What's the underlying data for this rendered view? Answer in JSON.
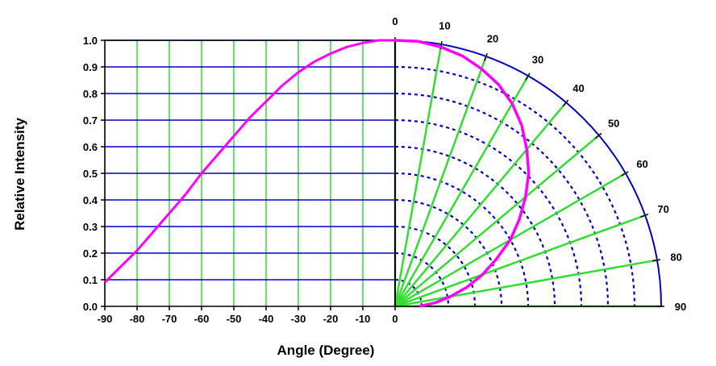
{
  "chart_data": {
    "type": "line",
    "xlabel": "Angle (Degree)",
    "ylabel": "Relative Intensity",
    "xlim": [
      -90,
      0
    ],
    "ylim": [
      0,
      1.0
    ],
    "x_ticks": [
      "-90",
      "-80",
      "-70",
      "-60",
      "-50",
      "-40",
      "-30",
      "-20",
      "-10",
      "0"
    ],
    "y_ticks": [
      "0.0",
      "0.1",
      "0.2",
      "0.3",
      "0.4",
      "0.5",
      "0.6",
      "0.7",
      "0.8",
      "0.9",
      "1.0"
    ],
    "polar_angle_labels": [
      "0",
      "10",
      "20",
      "30",
      "40",
      "50",
      "60",
      "70",
      "80",
      "90"
    ],
    "series": [
      {
        "x": [
          -90,
          -85,
          -80,
          -75,
          -70,
          -65,
          -60,
          -55,
          -50,
          -45,
          -40,
          -35,
          -30,
          -25,
          -20,
          -15,
          -10,
          -5,
          0
        ],
        "y": [
          0.09,
          0.15,
          0.21,
          0.28,
          0.35,
          0.42,
          0.5,
          0.57,
          0.64,
          0.71,
          0.77,
          0.83,
          0.88,
          0.92,
          0.95,
          0.975,
          0.99,
          1.0,
          1.0
        ]
      }
    ],
    "grid": true,
    "colors": {
      "curve": "#ff00ff",
      "vertical_grid": "#33dd33",
      "horizontal_grid": "#0000cc",
      "polar_arcs": "#0000cc",
      "polar_rays": "#33dd33",
      "axes": "#000000"
    }
  }
}
